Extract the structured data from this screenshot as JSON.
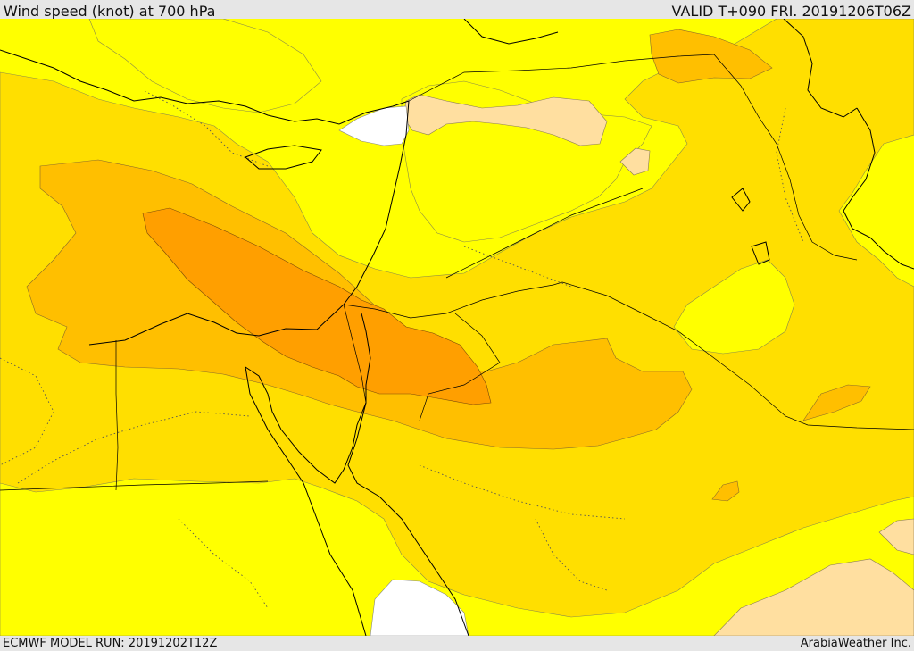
{
  "header": {
    "title": "Wind speed (knot) at 700 hPa",
    "valid": "VALID T+090 FRI. 20191206T06Z"
  },
  "footer": {
    "model_run": "ECMWF MODEL RUN: 20191202T12Z",
    "credit": "ArabiaWeather Inc."
  },
  "map": {
    "shading_colors": {
      "calm_white": "#ffffff",
      "light_peach": "#ffdfa0",
      "yellow": "#ffff00",
      "gold": "#ffdf00",
      "amber": "#ffbf00",
      "orange": "#ff9f00"
    }
  }
}
